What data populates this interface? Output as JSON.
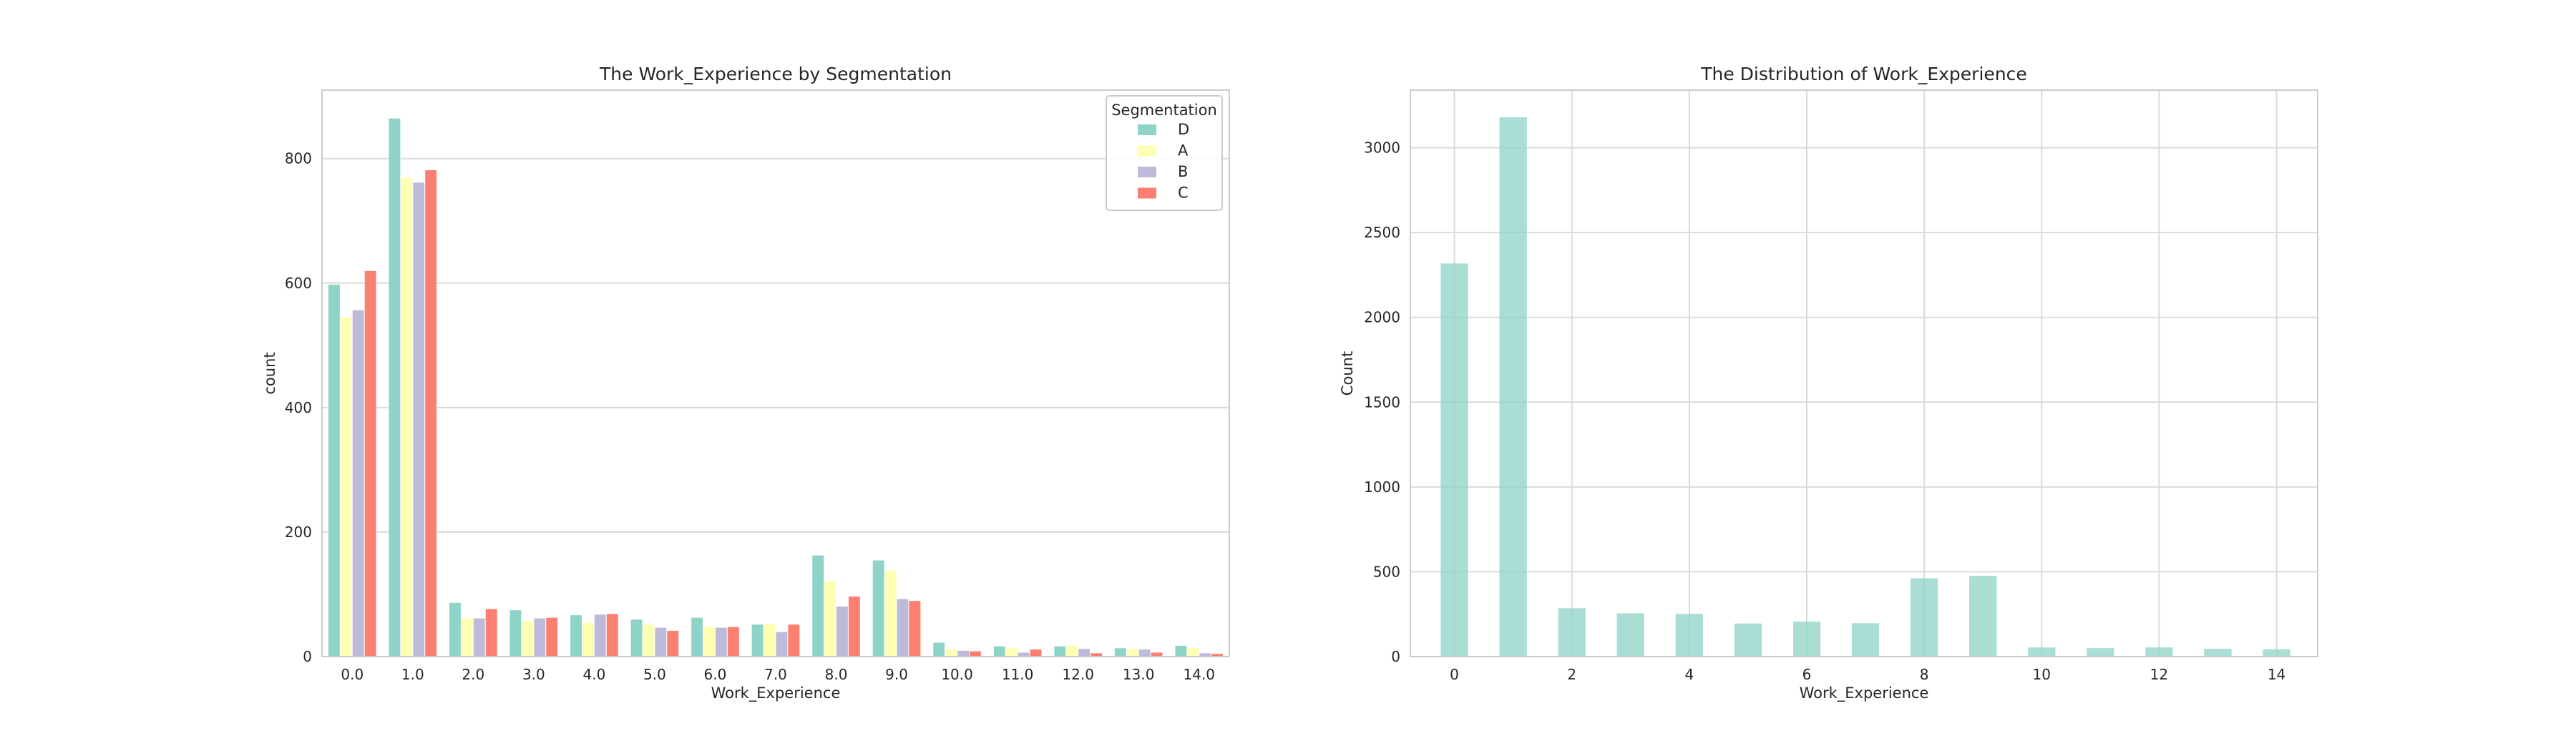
{
  "chart_data": [
    {
      "type": "bar",
      "title": "The Work_Experience by Segmentation",
      "xlabel": "Work_Experience",
      "ylabel": "count",
      "categories": [
        "0.0",
        "1.0",
        "2.0",
        "3.0",
        "4.0",
        "5.0",
        "6.0",
        "7.0",
        "8.0",
        "9.0",
        "10.0",
        "11.0",
        "12.0",
        "13.0",
        "14.0"
      ],
      "ylim": [
        0,
        910
      ],
      "yticks": [
        0,
        200,
        400,
        600,
        800
      ],
      "grid": "horizontal",
      "legend": {
        "title": "Segmentation",
        "placement": "top-right"
      },
      "series": [
        {
          "name": "D",
          "color": "#8dd3c7",
          "values": [
            598,
            865,
            87,
            75,
            67,
            60,
            63,
            52,
            163,
            155,
            23,
            17,
            17,
            14,
            18
          ]
        },
        {
          "name": "A",
          "color": "#ffffb3",
          "values": [
            545,
            770,
            62,
            58,
            55,
            52,
            48,
            53,
            122,
            138,
            12,
            14,
            18,
            13,
            14
          ]
        },
        {
          "name": "B",
          "color": "#bebada",
          "values": [
            557,
            762,
            62,
            62,
            68,
            47,
            47,
            40,
            81,
            93,
            10,
            7,
            13,
            12,
            6
          ]
        },
        {
          "name": "C",
          "color": "#fb8072",
          "values": [
            620,
            782,
            77,
            63,
            69,
            42,
            48,
            52,
            97,
            90,
            9,
            12,
            6,
            7,
            5
          ]
        }
      ]
    },
    {
      "type": "bar",
      "title": "The Distribution of Work_Experience",
      "xlabel": "Work_Experience",
      "ylabel": "Count",
      "color": "#8dd3c7",
      "xlim": [
        -0.75,
        14.7
      ],
      "ylim": [
        0,
        3340
      ],
      "xticks": [
        0,
        2,
        4,
        6,
        8,
        10,
        12,
        14
      ],
      "yticks": [
        0,
        500,
        1000,
        1500,
        2000,
        2500,
        3000
      ],
      "grid": "both",
      "x": [
        0,
        1,
        2,
        3,
        4,
        5,
        6,
        7,
        8,
        9,
        10,
        11,
        12,
        13,
        14
      ],
      "values": [
        2318,
        3180,
        285,
        255,
        252,
        195,
        206,
        197,
        462,
        476,
        54,
        50,
        54,
        46,
        43
      ]
    }
  ]
}
